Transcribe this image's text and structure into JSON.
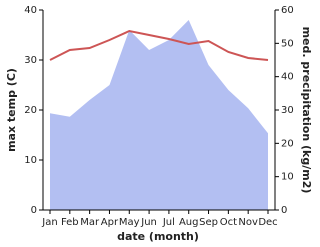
{
  "chart_data": {
    "type": "line-area",
    "xlabel": "date (month)",
    "ylabel": "max temp (C)",
    "y2label": "med. precipitation (kg/m2)",
    "categories": [
      "Jan",
      "Feb",
      "Mar",
      "Apr",
      "May",
      "Jun",
      "Jul",
      "Aug",
      "Sep",
      "Oct",
      "Nov",
      "Dec"
    ],
    "ylim": [
      0,
      40
    ],
    "yticks": [
      0,
      10,
      20,
      30,
      40
    ],
    "y2lim": [
      0,
      60
    ],
    "y2ticks": [
      0,
      10,
      20,
      30,
      40,
      50,
      60
    ],
    "series": [
      {
        "name": "med. precipitation",
        "kind": "area",
        "axis": "y2",
        "color": "#b3bff2",
        "values": [
          29,
          28,
          33,
          37.5,
          54,
          48,
          51,
          57,
          43.5,
          36,
          30.5,
          23
        ]
      },
      {
        "name": "max temp",
        "kind": "line",
        "axis": "y",
        "color": "#cd5555",
        "values": [
          30,
          32,
          32.4,
          34,
          35.8,
          35,
          34.2,
          33.2,
          33.8,
          31.6,
          30.4,
          30
        ]
      }
    ]
  }
}
